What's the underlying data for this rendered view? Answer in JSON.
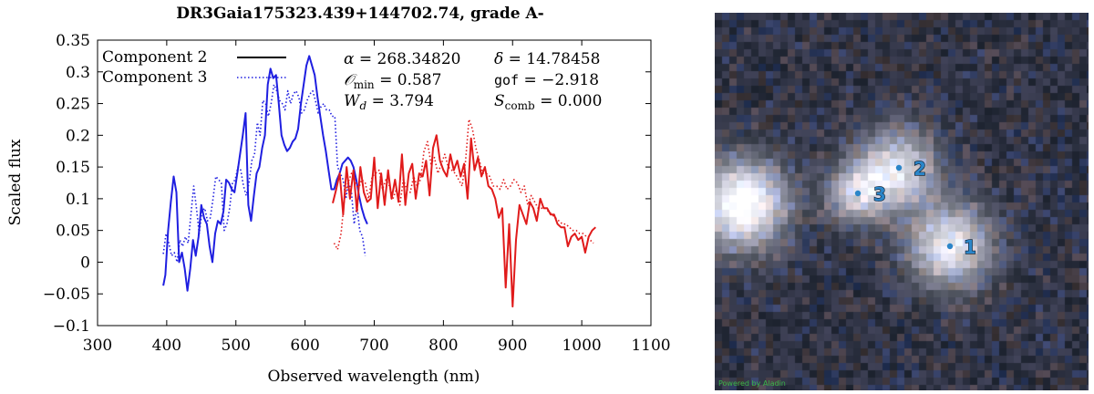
{
  "chart_data": {
    "type": "line",
    "title": "DR3Gaia175323.439+144702.74, grade A-",
    "xlabel": "Observed wavelength (nm)",
    "ylabel": "Scaled flux",
    "xlim": [
      300,
      1100
    ],
    "ylim": [
      -0.1,
      0.35
    ],
    "xticks": [
      300,
      400,
      500,
      600,
      700,
      800,
      900,
      1000,
      1100
    ],
    "yticks": [
      -0.1,
      -0.05,
      0,
      0.05,
      0.1,
      0.15,
      0.2,
      0.25,
      0.3,
      0.35
    ],
    "xtick_labels": [
      "300",
      "400",
      "500",
      "600",
      "700",
      "800",
      "900",
      "1000",
      "1100"
    ],
    "ytick_labels": [
      "−0.1",
      "−0.05",
      "0",
      "0.05",
      "0.1",
      "0.15",
      "0.2",
      "0.25",
      "0.3",
      "0.35"
    ],
    "legend": [
      {
        "name": "Component 2",
        "style": "solid"
      },
      {
        "name": "Component 3",
        "style": "dotted"
      }
    ],
    "colors": {
      "blue": "#1f1fe0",
      "red": "#e01b1b"
    },
    "series": [
      {
        "name": "Component 2 (BP)",
        "component": "Component 2",
        "style": "solid",
        "color": "#1f1fe0",
        "x": [
          395,
          398,
          402,
          406,
          410,
          414,
          418,
          422,
          426,
          430,
          434,
          438,
          442,
          446,
          450,
          454,
          458,
          462,
          466,
          470,
          474,
          478,
          482,
          486,
          490,
          494,
          498,
          502,
          506,
          510,
          514,
          518,
          522,
          526,
          530,
          534,
          538,
          542,
          546,
          550,
          554,
          558,
          562,
          566,
          570,
          574,
          578,
          582,
          586,
          590,
          594,
          598,
          602,
          606,
          610,
          614,
          618,
          622,
          626,
          630,
          634,
          638,
          642,
          646,
          650,
          654,
          658,
          662,
          666,
          670,
          674,
          678,
          682,
          686,
          690
        ],
        "y": [
          -0.037,
          -0.02,
          0.05,
          0.095,
          0.135,
          0.11,
          0.0,
          0.015,
          -0.01,
          -0.045,
          -0.01,
          0.035,
          0.01,
          0.04,
          0.09,
          0.07,
          0.06,
          0.025,
          0.0,
          0.045,
          0.065,
          0.06,
          0.08,
          0.13,
          0.125,
          0.115,
          0.11,
          0.14,
          0.17,
          0.2,
          0.235,
          0.09,
          0.065,
          0.105,
          0.14,
          0.15,
          0.18,
          0.2,
          0.28,
          0.305,
          0.29,
          0.295,
          0.25,
          0.2,
          0.185,
          0.175,
          0.18,
          0.19,
          0.195,
          0.21,
          0.25,
          0.28,
          0.31,
          0.325,
          0.31,
          0.295,
          0.26,
          0.23,
          0.2,
          0.175,
          0.145,
          0.115,
          0.115,
          0.13,
          0.14,
          0.155,
          0.16,
          0.165,
          0.16,
          0.15,
          0.13,
          0.105,
          0.085,
          0.07,
          0.06
        ]
      },
      {
        "name": "Component 3 (BP)",
        "component": "Component 3",
        "style": "dotted",
        "color": "#1f1fe0",
        "x": [
          395,
          399,
          403,
          407,
          411,
          415,
          419,
          423,
          427,
          431,
          435,
          439,
          443,
          447,
          451,
          455,
          459,
          463,
          467,
          471,
          475,
          479,
          483,
          487,
          491,
          495,
          499,
          503,
          507,
          511,
          515,
          519,
          523,
          527,
          531,
          535,
          539,
          543,
          547,
          551,
          555,
          559,
          563,
          567,
          571,
          575,
          579,
          583,
          587,
          591,
          595,
          599,
          603,
          607,
          611,
          615,
          619,
          623,
          627,
          631,
          635,
          639,
          643,
          647,
          651,
          655,
          659,
          663,
          667,
          671,
          675,
          679,
          683,
          687
        ],
        "y": [
          0.013,
          0.045,
          0.03,
          0.01,
          0.015,
          0.0,
          0.035,
          0.025,
          0.04,
          0.03,
          0.075,
          0.12,
          0.085,
          0.045,
          0.08,
          0.085,
          0.065,
          0.07,
          0.1,
          0.135,
          0.13,
          0.125,
          0.05,
          0.06,
          0.085,
          0.125,
          0.13,
          0.15,
          0.145,
          0.12,
          0.105,
          0.125,
          0.16,
          0.17,
          0.22,
          0.2,
          0.255,
          0.25,
          0.23,
          0.25,
          0.28,
          0.27,
          0.255,
          0.25,
          0.24,
          0.27,
          0.25,
          0.265,
          0.27,
          0.26,
          0.235,
          0.24,
          0.255,
          0.265,
          0.27,
          0.255,
          0.235,
          0.245,
          0.25,
          0.24,
          0.24,
          0.23,
          0.23,
          0.15,
          0.14,
          0.13,
          0.1,
          0.125,
          0.11,
          0.06,
          0.09,
          0.05,
          0.04,
          0.01
        ]
      },
      {
        "name": "Component 2 (RP)",
        "component": "Component 2",
        "style": "solid",
        "color": "#e01b1b",
        "x": [
          640,
          645,
          650,
          655,
          660,
          665,
          670,
          675,
          680,
          685,
          690,
          695,
          700,
          705,
          710,
          715,
          720,
          725,
          730,
          735,
          740,
          745,
          750,
          755,
          760,
          765,
          770,
          775,
          780,
          785,
          790,
          795,
          800,
          805,
          810,
          815,
          820,
          825,
          830,
          835,
          840,
          845,
          850,
          855,
          860,
          865,
          870,
          875,
          880,
          885,
          890,
          895,
          900,
          905,
          910,
          915,
          920,
          925,
          930,
          935,
          940,
          945,
          950,
          955,
          960,
          965,
          970,
          975,
          980,
          985,
          990,
          995,
          1000,
          1005,
          1010,
          1015,
          1020
        ],
        "y": [
          0.093,
          0.115,
          0.14,
          0.075,
          0.15,
          0.1,
          0.145,
          0.08,
          0.15,
          0.11,
          0.095,
          0.1,
          0.165,
          0.085,
          0.14,
          0.09,
          0.145,
          0.1,
          0.13,
          0.095,
          0.17,
          0.09,
          0.14,
          0.155,
          0.1,
          0.14,
          0.135,
          0.16,
          0.105,
          0.18,
          0.2,
          0.16,
          0.145,
          0.135,
          0.17,
          0.145,
          0.16,
          0.135,
          0.155,
          0.1,
          0.195,
          0.145,
          0.165,
          0.135,
          0.15,
          0.12,
          0.115,
          0.1,
          0.07,
          0.085,
          -0.04,
          0.06,
          -0.07,
          0.035,
          0.09,
          0.075,
          0.06,
          0.095,
          0.085,
          0.065,
          0.1,
          0.085,
          0.085,
          0.075,
          0.075,
          0.06,
          0.055,
          0.055,
          0.025,
          0.04,
          0.045,
          0.035,
          0.04,
          0.015,
          0.04,
          0.05,
          0.055
        ]
      },
      {
        "name": "Component 3 (RP)",
        "component": "Component 3",
        "style": "dotted",
        "color": "#e01b1b",
        "x": [
          642,
          647,
          652,
          657,
          662,
          667,
          672,
          677,
          682,
          687,
          692,
          697,
          702,
          707,
          712,
          717,
          722,
          727,
          732,
          737,
          742,
          747,
          752,
          757,
          762,
          767,
          772,
          777,
          782,
          787,
          792,
          797,
          802,
          807,
          812,
          817,
          822,
          827,
          832,
          837,
          842,
          847,
          852,
          857,
          862,
          867,
          872,
          877,
          882,
          887,
          892,
          897,
          902,
          907,
          912,
          917,
          922,
          927,
          932,
          937,
          942,
          947,
          952,
          957,
          962,
          967,
          972,
          977,
          982,
          987,
          992,
          997,
          1002,
          1007,
          1012,
          1017
        ],
        "y": [
          0.03,
          0.02,
          0.045,
          0.1,
          0.125,
          0.14,
          0.13,
          0.115,
          0.13,
          0.125,
          0.1,
          0.135,
          0.14,
          0.145,
          0.115,
          0.13,
          0.12,
          0.1,
          0.115,
          0.09,
          0.13,
          0.115,
          0.11,
          0.135,
          0.12,
          0.13,
          0.175,
          0.19,
          0.155,
          0.165,
          0.14,
          0.155,
          0.17,
          0.15,
          0.145,
          0.14,
          0.13,
          0.12,
          0.16,
          0.225,
          0.21,
          0.18,
          0.16,
          0.14,
          0.14,
          0.135,
          0.12,
          0.12,
          0.115,
          0.13,
          0.115,
          0.12,
          0.13,
          0.125,
          0.11,
          0.12,
          0.09,
          0.105,
          0.095,
          0.085,
          0.085,
          0.085,
          0.08,
          0.075,
          0.07,
          0.065,
          0.06,
          0.06,
          0.055,
          0.05,
          0.05,
          0.045,
          0.045,
          0.04,
          0.035,
          0.03
        ]
      }
    ],
    "annotations": [
      {
        "sym": "α",
        "eq": " = 268.34820"
      },
      {
        "sym": "δ",
        "eq": " = 14.78458"
      },
      {
        "sym": "𝒪",
        "sub": "min",
        "eq": " = 0.587"
      },
      {
        "sym": "gof",
        "eq": " = −2.918"
      },
      {
        "sym": "W",
        "sub": "d",
        "eq": " = 3.794"
      },
      {
        "sym": "S",
        "sub": "comb",
        "eq": " = 0.000"
      }
    ]
  },
  "sky_image": {
    "credit": "Powered by Aladin",
    "sources": [
      {
        "label": "1",
        "position": "lower-right"
      },
      {
        "label": "2",
        "position": "upper-center"
      },
      {
        "label": "3",
        "position": "center-left"
      }
    ]
  }
}
